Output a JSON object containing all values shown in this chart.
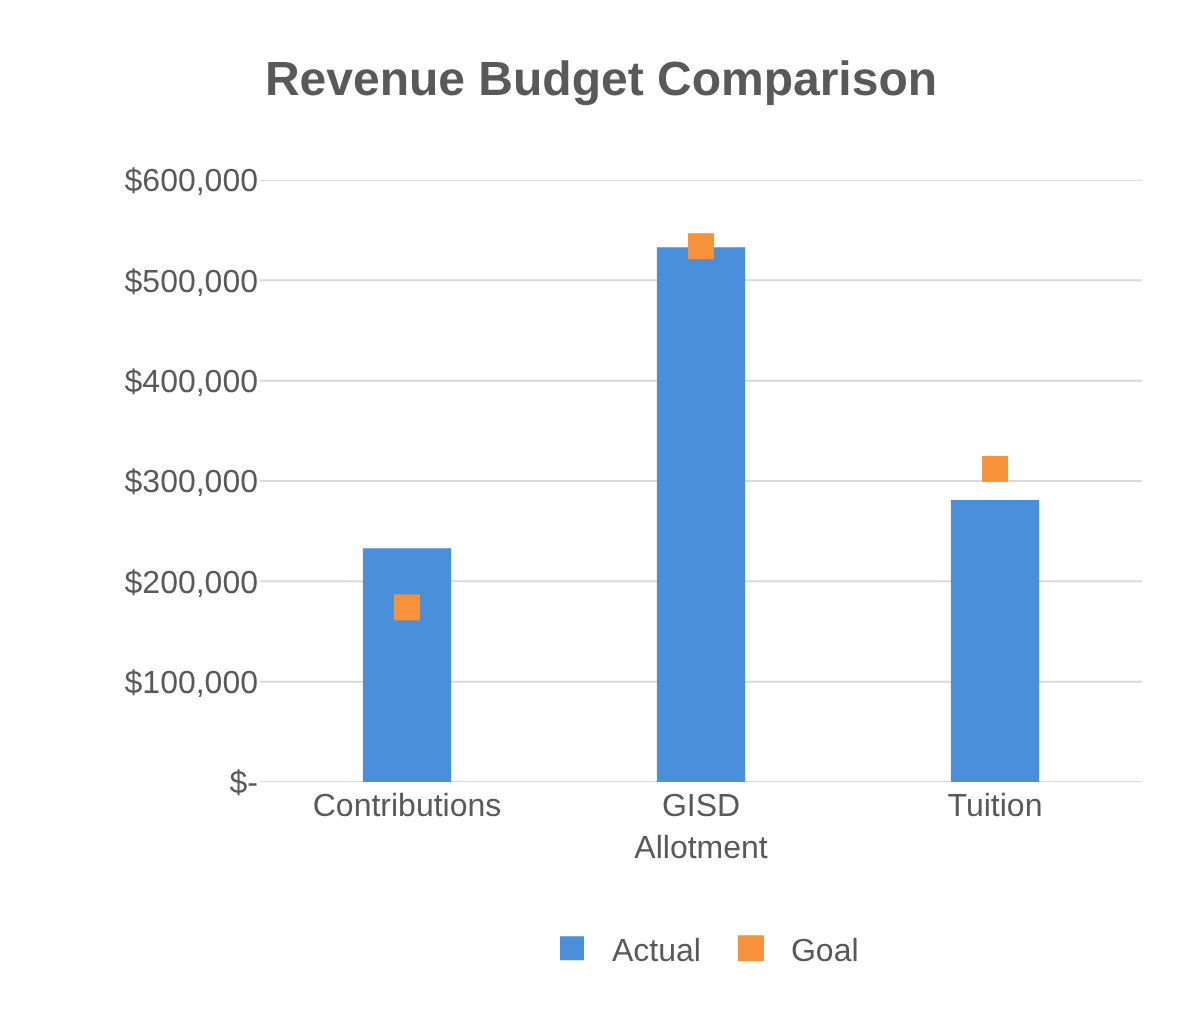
{
  "chart_data": {
    "type": "bar",
    "title": "Revenue Budget Comparison",
    "categories": [
      "Contributions",
      "GISD Allotment",
      "Tuition"
    ],
    "series": [
      {
        "name": "Actual",
        "color": "#4a8fd9",
        "values": [
          233000,
          533000,
          281000
        ]
      },
      {
        "name": "Goal",
        "type": "scatter",
        "marker": "square",
        "color": "#f7923a",
        "values": [
          174000,
          534000,
          312000
        ]
      }
    ],
    "ylim": [
      0,
      600000
    ],
    "yticks": [
      {
        "value": 0,
        "label": "$-"
      },
      {
        "value": 100000,
        "label": "$100,000"
      },
      {
        "value": 200000,
        "label": "$200,000"
      },
      {
        "value": 300000,
        "label": "$300,000"
      },
      {
        "value": 400000,
        "label": "$400,000"
      },
      {
        "value": 500000,
        "label": "$500,000"
      },
      {
        "value": 600000,
        "label": "$600,000"
      }
    ],
    "grid": "y",
    "legend": "bottom"
  }
}
